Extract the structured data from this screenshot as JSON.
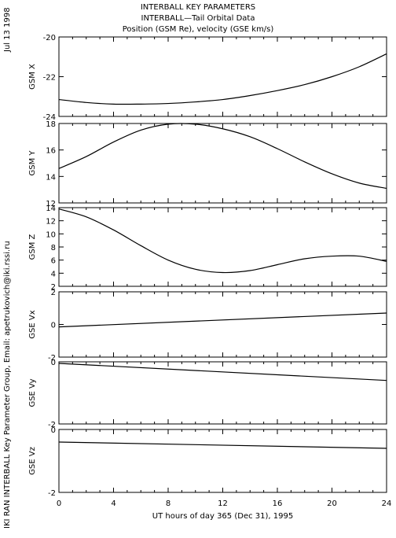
{
  "header": {
    "line1": "INTERBALL KEY PARAMETERS",
    "line2": "INTERBALL—Tail Orbital Data",
    "line3": "Position (GSM Re), velocity (GSE km/s)"
  },
  "side": {
    "date": "Jul 13 1998",
    "credit": "IKI RAN INTERBALL Key Parameter Group, Email: apetrukovich@iki.rssi.ru"
  },
  "colors": {
    "line": "#000000",
    "background": "#ffffff"
  },
  "chart_data": [
    {
      "type": "line",
      "ylabel": "GSM X",
      "ylim": [
        -24,
        -20
      ],
      "yticks": [
        -24,
        -22,
        -20
      ],
      "xlim": [
        0,
        24
      ],
      "series": [
        {
          "x": [
            0,
            2,
            4,
            6,
            8,
            10,
            12,
            14,
            16,
            18,
            20,
            22,
            24
          ],
          "y": [
            -23.15,
            -23.3,
            -23.38,
            -23.38,
            -23.35,
            -23.27,
            -23.15,
            -22.95,
            -22.7,
            -22.4,
            -22.0,
            -21.5,
            -20.85
          ]
        }
      ]
    },
    {
      "type": "line",
      "ylabel": "GSM Y",
      "ylim": [
        12,
        18
      ],
      "yticks": [
        12,
        14,
        16,
        18
      ],
      "xlim": [
        0,
        24
      ],
      "series": [
        {
          "x": [
            0,
            2,
            4,
            6,
            8,
            10,
            12,
            14,
            16,
            18,
            20,
            22,
            24
          ],
          "y": [
            14.6,
            15.5,
            16.6,
            17.5,
            17.95,
            17.95,
            17.6,
            17.0,
            16.1,
            15.1,
            14.2,
            13.5,
            13.1
          ]
        }
      ]
    },
    {
      "type": "line",
      "ylabel": "GSM Z",
      "ylim": [
        2,
        14
      ],
      "yticks": [
        2,
        4,
        6,
        8,
        10,
        12,
        14
      ],
      "xlim": [
        0,
        24
      ],
      "series": [
        {
          "x": [
            0,
            2,
            4,
            6,
            8,
            10,
            12,
            14,
            16,
            18,
            20,
            22,
            24
          ],
          "y": [
            13.8,
            12.6,
            10.6,
            8.2,
            6.0,
            4.6,
            4.1,
            4.4,
            5.3,
            6.2,
            6.6,
            6.6,
            5.8
          ]
        }
      ]
    },
    {
      "type": "line",
      "ylabel": "GSE Vx",
      "ylim": [
        -2,
        2
      ],
      "yticks": [
        -2,
        0,
        2
      ],
      "xlim": [
        0,
        24
      ],
      "series": [
        {
          "x": [
            0,
            24
          ],
          "y": [
            -0.15,
            0.7
          ]
        }
      ]
    },
    {
      "type": "line",
      "ylabel": "GSE Vy",
      "ylim": [
        -2,
        0
      ],
      "yticks": [
        -2,
        0
      ],
      "xlim": [
        0,
        24
      ],
      "series": [
        {
          "x": [
            0,
            24
          ],
          "y": [
            -0.05,
            -0.6
          ]
        }
      ]
    },
    {
      "type": "line",
      "ylabel": "GSE Vz",
      "ylim": [
        -2,
        0
      ],
      "yticks": [
        -2,
        0
      ],
      "xlim": [
        0,
        24
      ],
      "xticks": [
        0,
        4,
        8,
        12,
        16,
        20,
        24
      ],
      "xlabel": "UT hours of day 365 (Dec 31), 1995",
      "series": [
        {
          "x": [
            0,
            24
          ],
          "y": [
            -0.4,
            -0.6
          ]
        }
      ]
    }
  ]
}
